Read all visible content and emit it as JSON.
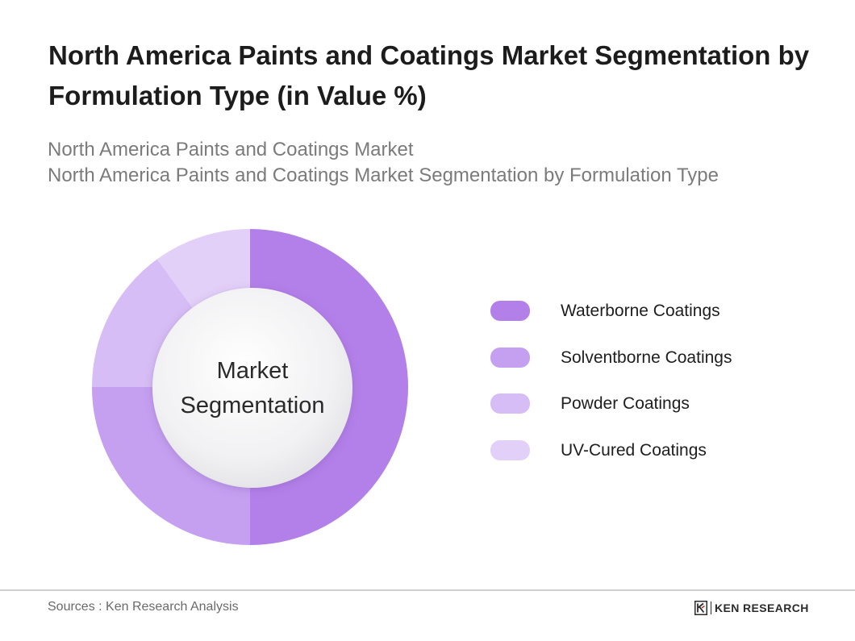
{
  "title": "North America Paints and Coatings Market Segmentation by Formulation Type (in Value %)",
  "subtitle_lines": [
    "North America Paints and Coatings Market",
    "North America Paints and Coatings Market Segmentation by Formulation Type"
  ],
  "chart_data": {
    "type": "pie",
    "style": "donut",
    "center_label_lines": [
      "Market",
      "Segmentation"
    ],
    "categories": [
      "Waterborne Coatings",
      "Solventborne Coatings",
      "Powder Coatings",
      "UV-Cured Coatings"
    ],
    "values": [
      50,
      25,
      15,
      10
    ],
    "colors": [
      "#b37fe9",
      "#c59ff0",
      "#d7bdf5",
      "#e3d0f8"
    ],
    "legend_position": "right"
  },
  "footer": {
    "source": "Sources : Ken Research Analysis",
    "brand": "KEN RESEARCH"
  }
}
